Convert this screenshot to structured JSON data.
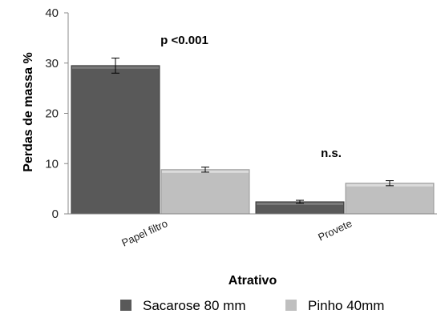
{
  "chart_data": {
    "type": "bar",
    "xlabel": "Atrativo",
    "ylabel": "Perdas de massa %",
    "ylim": [
      0,
      40
    ],
    "yticks": [
      0,
      10,
      20,
      30,
      40
    ],
    "categories": [
      "Papel filtro",
      "Provete"
    ],
    "series": [
      {
        "name": "Sacarose 80 mm",
        "values": [
          29.5,
          2.4
        ],
        "errors": [
          1.5,
          0.3
        ],
        "color": "#595959"
      },
      {
        "name": "Pinho 40mm",
        "values": [
          8.8,
          6.1
        ],
        "errors": [
          0.5,
          0.5
        ],
        "color": "#bfbfbf"
      }
    ],
    "annotations": [
      "p <0.001",
      "n.s."
    ],
    "legend_position": "bottom",
    "grid": false
  }
}
